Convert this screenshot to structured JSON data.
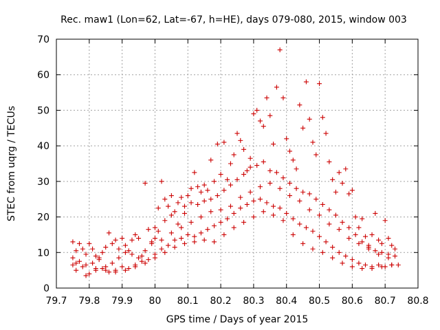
{
  "chart_data": {
    "type": "scatter",
    "title": "Rec. maw1 (Lon=62, Lat=-67, h=HE), days 079-080, 2015, window 003",
    "xlabel": "GPS time / Days of year 2015",
    "ylabel": "STEC from uqrg / TECUs",
    "xlim": [
      79.7,
      80.8
    ],
    "ylim": [
      0,
      70
    ],
    "xticks": [
      "79.7",
      "79.8",
      "79.9",
      "80",
      "80.1",
      "80.2",
      "80.3",
      "80.4",
      "80.5",
      "80.6",
      "80.7",
      "80.8"
    ],
    "yticks": [
      "0",
      "10",
      "20",
      "30",
      "40",
      "50",
      "60",
      "70"
    ],
    "grid": true,
    "marker": "plus",
    "marker_color": "#cc0000",
    "series": [
      {
        "points": [
          [
            79.75,
            13.0
          ],
          [
            79.76,
            10.5
          ],
          [
            79.77,
            12.5
          ],
          [
            79.78,
            11.0
          ],
          [
            79.79,
            9.5
          ],
          [
            79.8,
            12.5
          ],
          [
            79.81,
            11.0
          ],
          [
            79.82,
            9.0
          ],
          [
            79.83,
            8.5
          ],
          [
            79.84,
            10.0
          ],
          [
            79.85,
            11.5
          ],
          [
            79.86,
            15.5
          ],
          [
            79.87,
            12.5
          ],
          [
            79.88,
            13.5
          ],
          [
            79.89,
            11.0
          ],
          [
            79.9,
            14.0
          ],
          [
            79.91,
            12.0
          ],
          [
            79.92,
            10.5
          ],
          [
            79.93,
            13.5
          ],
          [
            79.94,
            15.0
          ],
          [
            79.95,
            14.0
          ],
          [
            79.96,
            9.0
          ],
          [
            79.97,
            29.5
          ],
          [
            79.98,
            16.5
          ],
          [
            79.99,
            13.0
          ],
          [
            80.0,
            17.0
          ],
          [
            80.01,
            22.5
          ],
          [
            80.02,
            30.0
          ],
          [
            80.03,
            25.0
          ],
          [
            80.04,
            23.0
          ],
          [
            80.05,
            26.0
          ],
          [
            80.06,
            21.5
          ],
          [
            80.07,
            24.0
          ],
          [
            80.08,
            25.5
          ],
          [
            80.09,
            23.0
          ],
          [
            80.1,
            26.0
          ],
          [
            80.11,
            28.0
          ],
          [
            80.12,
            32.5
          ],
          [
            80.13,
            28.5
          ],
          [
            80.14,
            27.0
          ],
          [
            80.15,
            29.0
          ],
          [
            80.16,
            27.5
          ],
          [
            80.17,
            36.0
          ],
          [
            80.18,
            30.0
          ],
          [
            80.19,
            40.5
          ],
          [
            80.2,
            32.0
          ],
          [
            80.21,
            41.0
          ],
          [
            80.22,
            30.5
          ],
          [
            80.23,
            35.0
          ],
          [
            80.24,
            37.5
          ],
          [
            80.25,
            43.5
          ],
          [
            80.26,
            41.5
          ],
          [
            80.27,
            39.0
          ],
          [
            80.28,
            33.0
          ],
          [
            80.29,
            36.5
          ],
          [
            80.3,
            49.0
          ],
          [
            80.31,
            50.0
          ],
          [
            80.32,
            47.0
          ],
          [
            80.33,
            45.5
          ],
          [
            80.34,
            53.5
          ],
          [
            80.35,
            48.5
          ],
          [
            80.36,
            40.5
          ],
          [
            80.37,
            56.5
          ],
          [
            80.38,
            67.0
          ],
          [
            80.39,
            53.5
          ],
          [
            80.4,
            42.0
          ],
          [
            80.41,
            38.5
          ],
          [
            80.42,
            36.0
          ],
          [
            80.43,
            33.5
          ],
          [
            80.44,
            51.5
          ],
          [
            80.45,
            45.0
          ],
          [
            80.46,
            58.0
          ],
          [
            80.47,
            47.5
          ],
          [
            80.48,
            41.0
          ],
          [
            80.49,
            37.5
          ],
          [
            80.5,
            57.5
          ],
          [
            80.51,
            48.0
          ],
          [
            80.52,
            43.5
          ],
          [
            80.53,
            35.5
          ],
          [
            80.54,
            30.5
          ],
          [
            80.55,
            27.0
          ],
          [
            80.56,
            32.5
          ],
          [
            80.57,
            29.5
          ],
          [
            80.58,
            33.5
          ],
          [
            80.59,
            26.5
          ],
          [
            80.6,
            27.5
          ],
          [
            80.61,
            20.0
          ],
          [
            80.62,
            17.0
          ],
          [
            80.63,
            19.5
          ],
          [
            80.64,
            14.5
          ],
          [
            80.65,
            12.0
          ],
          [
            80.66,
            15.0
          ],
          [
            80.67,
            21.0
          ],
          [
            80.68,
            13.5
          ],
          [
            80.69,
            12.5
          ],
          [
            80.7,
            19.0
          ],
          [
            80.71,
            14.0
          ],
          [
            80.72,
            12.0
          ],
          [
            80.73,
            11.0
          ],
          [
            79.75,
            8.5
          ],
          [
            79.77,
            7.5
          ],
          [
            79.79,
            6.5
          ],
          [
            79.81,
            7.0
          ],
          [
            79.83,
            8.0
          ],
          [
            79.85,
            6.0
          ],
          [
            79.87,
            7.0
          ],
          [
            79.89,
            8.5
          ],
          [
            79.91,
            10.0
          ],
          [
            79.93,
            9.5
          ],
          [
            79.95,
            8.5
          ],
          [
            79.97,
            10.5
          ],
          [
            79.99,
            12.5
          ],
          [
            80.01,
            16.0
          ],
          [
            80.03,
            19.0
          ],
          [
            80.05,
            20.5
          ],
          [
            80.07,
            18.0
          ],
          [
            80.09,
            21.0
          ],
          [
            80.11,
            24.0
          ],
          [
            80.13,
            23.5
          ],
          [
            80.15,
            24.5
          ],
          [
            80.17,
            25.0
          ],
          [
            80.19,
            26.0
          ],
          [
            80.21,
            27.5
          ],
          [
            80.23,
            29.0
          ],
          [
            80.25,
            30.5
          ],
          [
            80.27,
            32.0
          ],
          [
            80.29,
            34.0
          ],
          [
            80.31,
            34.5
          ],
          [
            80.33,
            35.5
          ],
          [
            80.35,
            33.0
          ],
          [
            80.37,
            32.5
          ],
          [
            80.39,
            31.0
          ],
          [
            80.41,
            29.5
          ],
          [
            80.43,
            28.0
          ],
          [
            80.45,
            27.0
          ],
          [
            80.47,
            26.5
          ],
          [
            80.49,
            25.0
          ],
          [
            80.51,
            23.5
          ],
          [
            80.53,
            22.0
          ],
          [
            80.55,
            20.5
          ],
          [
            80.57,
            18.5
          ],
          [
            80.59,
            17.0
          ],
          [
            80.61,
            15.0
          ],
          [
            80.63,
            13.0
          ],
          [
            80.65,
            11.5
          ],
          [
            80.67,
            10.5
          ],
          [
            80.69,
            10.0
          ],
          [
            80.71,
            9.5
          ],
          [
            80.73,
            9.0
          ],
          [
            79.75,
            6.5
          ],
          [
            79.76,
            7.0
          ],
          [
            79.78,
            6.0
          ],
          [
            79.8,
            4.0
          ],
          [
            79.82,
            5.0
          ],
          [
            79.84,
            5.5
          ],
          [
            79.86,
            4.5
          ],
          [
            79.88,
            5.0
          ],
          [
            79.9,
            6.0
          ],
          [
            79.92,
            5.5
          ],
          [
            79.94,
            6.5
          ],
          [
            79.96,
            7.5
          ],
          [
            79.98,
            8.0
          ],
          [
            80.0,
            9.5
          ],
          [
            80.02,
            11.0
          ],
          [
            80.04,
            12.0
          ],
          [
            80.06,
            13.5
          ],
          [
            80.08,
            14.0
          ],
          [
            80.1,
            15.0
          ],
          [
            80.12,
            14.5
          ],
          [
            80.14,
            15.5
          ],
          [
            80.16,
            16.5
          ],
          [
            80.18,
            17.5
          ],
          [
            80.2,
            18.5
          ],
          [
            80.22,
            19.5
          ],
          [
            80.24,
            21.0
          ],
          [
            80.26,
            22.5
          ],
          [
            80.28,
            23.5
          ],
          [
            80.3,
            24.5
          ],
          [
            80.32,
            25.0
          ],
          [
            80.34,
            24.0
          ],
          [
            80.36,
            23.0
          ],
          [
            80.38,
            22.5
          ],
          [
            80.4,
            21.0
          ],
          [
            80.42,
            19.5
          ],
          [
            80.44,
            18.0
          ],
          [
            80.46,
            17.0
          ],
          [
            80.48,
            16.0
          ],
          [
            80.5,
            14.5
          ],
          [
            80.52,
            13.0
          ],
          [
            80.54,
            11.5
          ],
          [
            80.56,
            10.0
          ],
          [
            80.58,
            9.0
          ],
          [
            80.6,
            8.0
          ],
          [
            80.62,
            7.0
          ],
          [
            80.64,
            6.5
          ],
          [
            80.66,
            6.0
          ],
          [
            80.68,
            6.5
          ],
          [
            80.7,
            6.0
          ],
          [
            80.72,
            6.5
          ],
          [
            80.74,
            6.5
          ],
          [
            79.76,
            5.0
          ],
          [
            79.79,
            3.5
          ],
          [
            79.82,
            5.5
          ],
          [
            79.85,
            5.0
          ],
          [
            79.88,
            4.5
          ],
          [
            79.91,
            5.0
          ],
          [
            79.94,
            6.0
          ],
          [
            79.97,
            7.0
          ],
          [
            80.0,
            8.5
          ],
          [
            80.03,
            10.0
          ],
          [
            80.06,
            11.5
          ],
          [
            80.09,
            12.5
          ],
          [
            80.12,
            13.0
          ],
          [
            80.15,
            13.5
          ],
          [
            80.18,
            13.0
          ],
          [
            80.21,
            15.0
          ],
          [
            80.24,
            17.0
          ],
          [
            80.27,
            18.5
          ],
          [
            80.3,
            20.0
          ],
          [
            80.33,
            21.5
          ],
          [
            80.36,
            20.5
          ],
          [
            80.39,
            19.0
          ],
          [
            80.42,
            15.0
          ],
          [
            80.45,
            12.5
          ],
          [
            80.48,
            11.0
          ],
          [
            80.51,
            10.0
          ],
          [
            80.54,
            8.5
          ],
          [
            80.57,
            7.0
          ],
          [
            80.6,
            6.0
          ],
          [
            80.63,
            5.5
          ],
          [
            80.66,
            5.5
          ],
          [
            80.69,
            6.0
          ],
          [
            80.72,
            6.5
          ],
          [
            80.0,
            14.0
          ],
          [
            80.02,
            13.5
          ],
          [
            80.05,
            15.5
          ],
          [
            80.08,
            17.0
          ],
          [
            80.11,
            18.5
          ],
          [
            80.14,
            20.0
          ],
          [
            80.17,
            21.5
          ],
          [
            80.2,
            22.0
          ],
          [
            80.23,
            23.0
          ],
          [
            80.26,
            25.5
          ],
          [
            80.29,
            27.0
          ],
          [
            80.32,
            28.5
          ],
          [
            80.35,
            29.5
          ],
          [
            80.38,
            28.0
          ],
          [
            80.41,
            26.0
          ],
          [
            80.44,
            24.5
          ],
          [
            80.47,
            22.0
          ],
          [
            80.5,
            20.5
          ],
          [
            80.53,
            18.0
          ],
          [
            80.56,
            16.5
          ],
          [
            80.59,
            14.0
          ],
          [
            80.62,
            12.5
          ],
          [
            80.65,
            11.0
          ],
          [
            80.68,
            9.5
          ],
          [
            80.71,
            8.5
          ]
        ]
      }
    ]
  }
}
